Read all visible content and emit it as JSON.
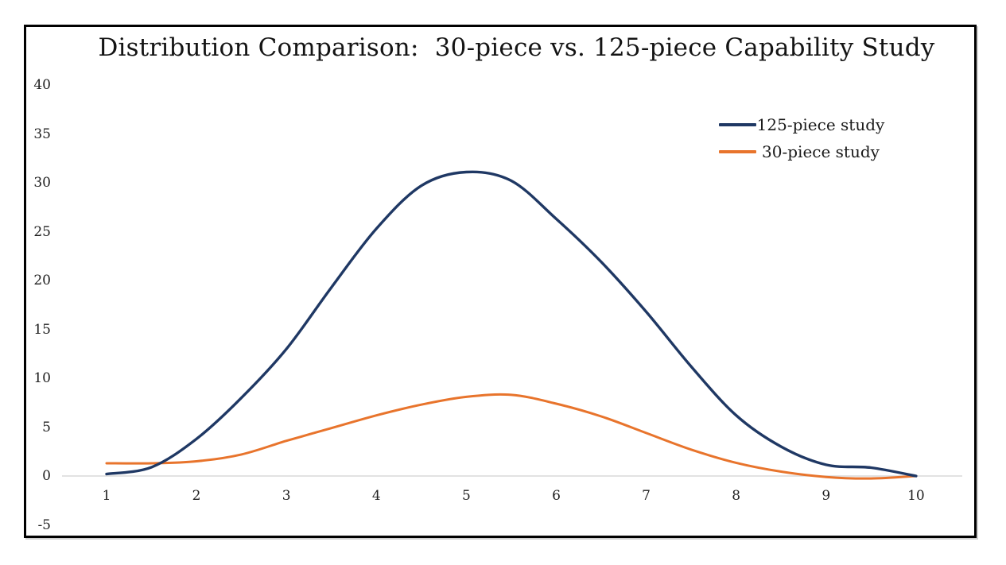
{
  "window": {
    "background": "#ffffff",
    "frame_border_color": "#000000"
  },
  "chart_data": {
    "type": "line",
    "title": "Distribution Comparison:  30-piece vs. 125-piece Capability Study",
    "xlabel": "",
    "ylabel": "",
    "xlim": [
      1,
      10
    ],
    "ylim": [
      -5,
      40
    ],
    "xticks": [
      "1",
      "2",
      "3",
      "4",
      "5",
      "6",
      "7",
      "8",
      "9",
      "10"
    ],
    "yticks": [
      "40",
      "35",
      "30",
      "25",
      "20",
      "15",
      "10",
      "5",
      "0",
      "-5"
    ],
    "ytick_values": [
      40,
      35,
      30,
      25,
      20,
      15,
      10,
      5,
      0,
      -5
    ],
    "xtick_values": [
      1,
      2,
      3,
      4,
      5,
      6,
      7,
      8,
      9,
      10
    ],
    "grid": "zero-line-only",
    "zero_line_color": "#D9D9D9",
    "legend_position": "top-right",
    "x": [
      1,
      1.5,
      2,
      2.5,
      3,
      3.5,
      4,
      4.5,
      5,
      5.5,
      6,
      6.5,
      7,
      7.5,
      8,
      8.5,
      9,
      9.5,
      10
    ],
    "series": [
      {
        "name": "125-piece study",
        "color": "#1F3864",
        "stroke_width": 3.4,
        "values": [
          0.2,
          0.9,
          3.8,
          8.0,
          13.0,
          19.3,
          25.3,
          29.7,
          31.1,
          30.2,
          26.3,
          21.9,
          16.8,
          11.2,
          6.2,
          3.0,
          1.15,
          0.85,
          0.0
        ]
      },
      {
        "name": "30-piece study",
        "color": "#E8742C",
        "stroke_width": 3.0,
        "values": [
          1.3,
          1.3,
          1.5,
          2.2,
          3.6,
          4.9,
          6.2,
          7.3,
          8.1,
          8.3,
          7.4,
          6.1,
          4.4,
          2.7,
          1.35,
          0.45,
          -0.1,
          -0.25,
          0.0
        ]
      }
    ]
  },
  "legend": {
    "items": [
      {
        "label": "125-piece study",
        "color": "#1F3864"
      },
      {
        "label": "30-piece study",
        "color": "#E8742C"
      }
    ]
  }
}
